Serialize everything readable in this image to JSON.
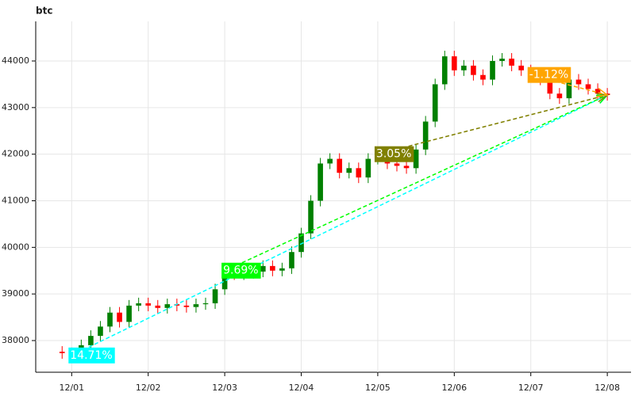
{
  "chart_data": {
    "type": "candlestick",
    "title": "btc",
    "xlim": [
      -0.47,
      7.31
    ],
    "xticks": [
      {
        "value": 0,
        "label": "12/01"
      },
      {
        "value": 1,
        "label": "12/02"
      },
      {
        "value": 2,
        "label": "12/03"
      },
      {
        "value": 3,
        "label": "12/04"
      },
      {
        "value": 4,
        "label": "12/05"
      },
      {
        "value": 5,
        "label": "12/06"
      },
      {
        "value": 6,
        "label": "12/07"
      },
      {
        "value": 7,
        "label": "12/08"
      }
    ],
    "ylim": [
      37320,
      44850
    ],
    "yticks": [
      38000,
      39000,
      40000,
      41000,
      42000,
      43000,
      44000
    ],
    "grid": true,
    "up_color": "#008000",
    "down_color": "#ff0000",
    "x": [
      -0.125,
      0,
      0.125,
      0.25,
      0.375,
      0.5,
      0.625,
      0.75,
      0.875,
      1,
      1.125,
      1.25,
      1.375,
      1.5,
      1.625,
      1.75,
      1.875,
      2,
      2.125,
      2.25,
      2.375,
      2.5,
      2.625,
      2.75,
      2.875,
      3,
      3.125,
      3.25,
      3.375,
      3.5,
      3.625,
      3.75,
      3.875,
      4,
      4.125,
      4.25,
      4.375,
      4.5,
      4.625,
      4.75,
      4.875,
      5,
      5.125,
      5.25,
      5.375,
      5.5,
      5.625,
      5.75,
      5.875,
      6,
      6.125,
      6.25,
      6.375,
      6.5,
      6.625,
      6.75,
      6.875,
      7
    ],
    "open": [
      37760,
      37730,
      37680,
      37900,
      38100,
      38300,
      38600,
      38400,
      38750,
      38800,
      38750,
      38700,
      38780,
      38750,
      38720,
      38780,
      38800,
      39100,
      39500,
      39420,
      39450,
      39480,
      39600,
      39500,
      39550,
      39900,
      40300,
      41000,
      41800,
      41900,
      41600,
      41700,
      41500,
      41900,
      42000,
      41800,
      41750,
      41700,
      42100,
      42700,
      43500,
      44100,
      43800,
      43900,
      43700,
      43600,
      44000,
      44050,
      43900,
      43800,
      43700,
      43600,
      43300,
      43200,
      43600,
      43500,
      43400,
      43300
    ],
    "high": [
      37880,
      37850,
      38020,
      38220,
      38420,
      38720,
      38720,
      38870,
      38920,
      38920,
      38870,
      38900,
      38900,
      38870,
      38900,
      38920,
      39220,
      39620,
      39620,
      39570,
      39600,
      39720,
      39720,
      39670,
      40020,
      40420,
      41120,
      41920,
      42020,
      42020,
      41820,
      41820,
      42020,
      42120,
      42120,
      41920,
      41870,
      42220,
      42820,
      43620,
      44220,
      44220,
      44020,
      44020,
      43820,
      44120,
      44170,
      44170,
      44020,
      43920,
      43820,
      43720,
      43420,
      43720,
      43720,
      43620,
      43520,
      43420
    ],
    "low": [
      37610,
      37560,
      37560,
      37780,
      37980,
      38180,
      38280,
      38280,
      38630,
      38630,
      38580,
      38580,
      38630,
      38600,
      38600,
      38660,
      38680,
      38980,
      39300,
      39300,
      39330,
      39360,
      39380,
      39380,
      39430,
      39780,
      40180,
      40880,
      41680,
      41480,
      41480,
      41380,
      41380,
      41780,
      41680,
      41630,
      41580,
      41580,
      41980,
      42580,
      43380,
      43680,
      43680,
      43580,
      43480,
      43480,
      43880,
      43780,
      43680,
      43580,
      43480,
      43180,
      43080,
      43080,
      43380,
      43280,
      43180,
      43150
    ],
    "close": [
      37730,
      37680,
      37900,
      38100,
      38300,
      38600,
      38400,
      38750,
      38800,
      38750,
      38700,
      38780,
      38750,
      38720,
      38780,
      38800,
      39100,
      39500,
      39420,
      39450,
      39480,
      39600,
      39500,
      39550,
      39900,
      40300,
      41000,
      41800,
      41900,
      41600,
      41700,
      41500,
      41900,
      42000,
      41800,
      41750,
      41700,
      42100,
      42700,
      43500,
      44100,
      43800,
      43900,
      43700,
      43600,
      44000,
      44050,
      43900,
      43800,
      43700,
      43600,
      43300,
      43200,
      43600,
      43500,
      43400,
      43300,
      43270
    ],
    "annotations": [
      {
        "text": "14.71%",
        "x": 0,
        "y": 37680,
        "color": "#00ffff"
      },
      {
        "text": "9.69%",
        "x": 2,
        "y": 39500,
        "color": "#00ff00"
      },
      {
        "text": "3.05%",
        "x": 4,
        "y": 42000,
        "color": "#808000"
      },
      {
        "text": "-1.12%",
        "x": 6,
        "y": 43700,
        "color": "#ffa500"
      }
    ]
  }
}
